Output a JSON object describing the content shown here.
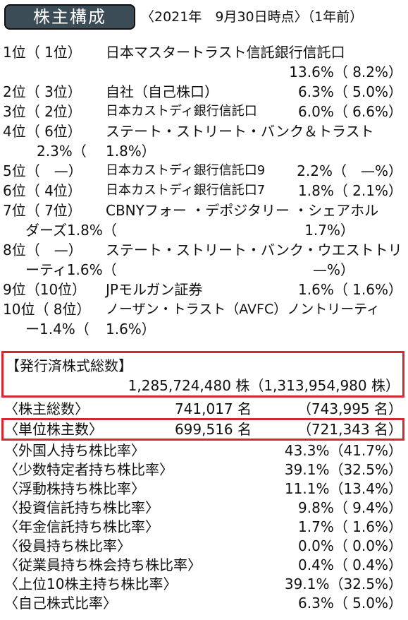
{
  "header": {
    "badge": "株主構成",
    "as_of": "〈2021年　9月30日時点〉（1年前）"
  },
  "shareholders": [
    {
      "rank": "1位（ 1位）",
      "name": "日本マスタートラスト信託銀行信託口",
      "pct": "13.6%（ 8.2%）"
    },
    {
      "rank": "2位（ 3位）",
      "name": "自社（自己株口）",
      "pct": "6.3%（ 5.0%）"
    },
    {
      "rank": "3位（ 2位）",
      "name": "日本カストディ銀行信託口",
      "pct": "6.0%（ 6.6%）"
    },
    {
      "rank": "4位（ 6位）",
      "name": "ステート・ストリート・バンク＆トラスト",
      "pct_a": "2.3%（",
      "pct_b": "1.8%）"
    },
    {
      "rank": "5位（　—）",
      "name": "日本カストディ銀行信託口9",
      "pct": "2.2%（　—%）"
    },
    {
      "rank": "6位（ 4位）",
      "name": "日本カストディ銀行信託口7",
      "pct": "1.8%（ 2.1%）"
    },
    {
      "rank": "7位（ 7位）",
      "name": "CBNYフォー ・デポジタリー ・シェアホル",
      "name2": "ダーズ1.8%（",
      "pct_b": "1.7%）"
    },
    {
      "rank": "8位（　—）",
      "name": "ステート・ストリート・バンク・ウエストトリ",
      "name2": "ーティ1.6%（",
      "pct_b": "—%）"
    },
    {
      "rank": "9位（10位）",
      "name": "JPモルガン証券",
      "pct": "1.6%（ 1.6%）"
    },
    {
      "rank": "10位（ 8位）",
      "name": "ノーザン・トラスト（AVFC）ノントリーティ",
      "name2": "ー1.4%（",
      "pct_b": "1.6%）"
    }
  ],
  "issued": {
    "label": "【発行済株式総数】",
    "value": "1,285,724,480 株（1,313,954,980 株）"
  },
  "stats": [
    {
      "label": "〈株主総数〉",
      "value": "741,017 名",
      "prev": "（743,995 名）"
    },
    {
      "label": "〈単位株主数〉",
      "value": "699,516 名",
      "prev": "（721,343 名）"
    }
  ],
  "ratios": [
    {
      "label": "〈外国人持ち株比率〉",
      "value": "43.3%（41.7%）"
    },
    {
      "label": "〈少数特定者持ち株比率〉",
      "value": "39.1%（32.5%）"
    },
    {
      "label": "〈浮動株持ち株比率〉",
      "value": "11.1%（13.4%）"
    },
    {
      "label": "〈投資信託持ち株比率〉",
      "value": "9.8%（ 9.4%）"
    },
    {
      "label": "〈年金信託持ち株比率〉",
      "value": "1.7%（ 1.6%）"
    },
    {
      "label": "〈役員持ち株比率〉",
      "value": "0.0%（ 0.0%）"
    },
    {
      "label": "〈従業員持ち株会持ち株比率〉",
      "value": "0.4%（ 0.4%）"
    },
    {
      "label": "〈上位10株主持ち株比率〉",
      "value": "39.1%（32.5%）"
    },
    {
      "label": "〈自己株式比率〉",
      "value": "6.3%（ 5.0%）"
    }
  ],
  "colors": {
    "badge_bg": "#3b4c56",
    "highlight": "#d42a2f"
  }
}
